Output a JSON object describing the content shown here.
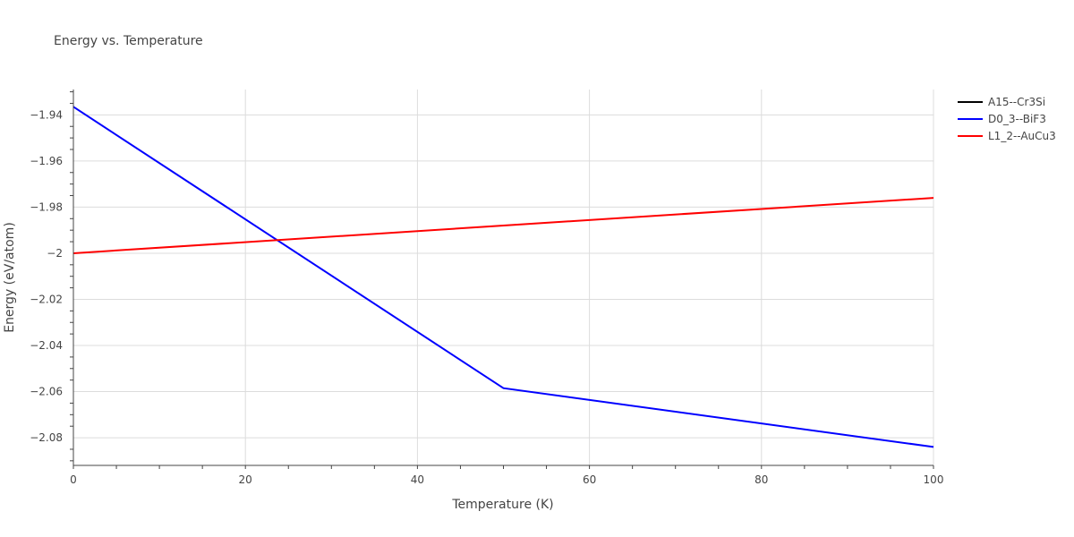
{
  "chart_data": {
    "type": "line",
    "title": "Energy vs. Temperature",
    "xlabel": "Temperature (K)",
    "ylabel": "Energy (eV/atom)",
    "xlim": [
      0,
      100
    ],
    "ylim": [
      -2.092,
      -1.929
    ],
    "xticks": [
      0,
      20,
      40,
      60,
      80,
      100
    ],
    "xtick_labels": [
      "0",
      "20",
      "40",
      "60",
      "80",
      "100"
    ],
    "yticks": [
      -1.94,
      -1.96,
      -1.98,
      -2.0,
      -2.02,
      -2.04,
      -2.06,
      -2.08
    ],
    "ytick_labels": [
      "−1.94",
      "−1.96",
      "−1.98",
      "−2",
      "−2.02",
      "−2.04",
      "−2.06",
      "−2.08"
    ],
    "grid": true,
    "legend_position": "top-right",
    "series": [
      {
        "name": "A15--Cr3Si",
        "color": "#000000",
        "x": [],
        "y": []
      },
      {
        "name": "D0_3--BiF3",
        "color": "#0000ff",
        "x": [
          0,
          50,
          100
        ],
        "y": [
          -1.9365,
          -2.0585,
          -2.084
        ]
      },
      {
        "name": "L1_2--AuCu3",
        "color": "#ff0000",
        "x": [
          0,
          100
        ],
        "y": [
          -2.0,
          -1.976
        ]
      }
    ]
  }
}
